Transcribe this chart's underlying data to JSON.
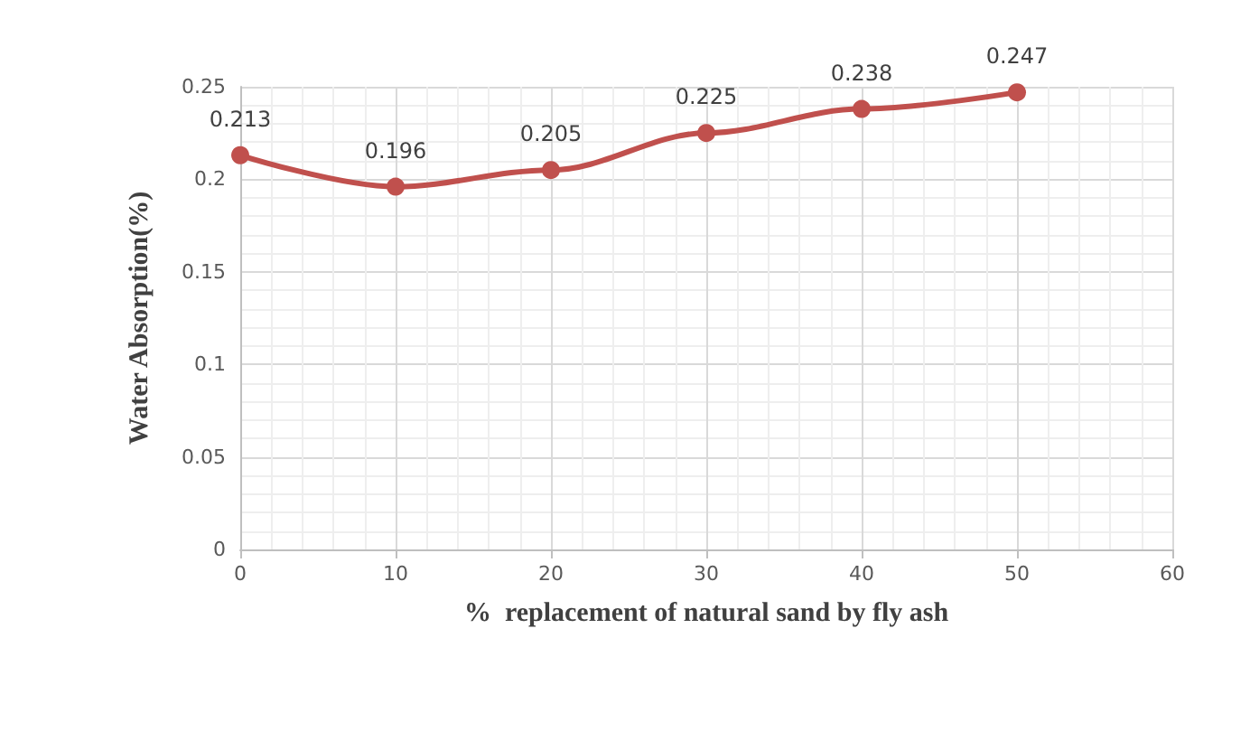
{
  "chart_data": {
    "type": "line",
    "xlabel": "%  replacement of natural sand by fly ash",
    "ylabel": "Water Absorption(%)",
    "x": [
      0,
      10,
      20,
      30,
      40,
      50
    ],
    "series": [
      {
        "color": "#c0504d",
        "values": [
          0.213,
          0.196,
          0.205,
          0.225,
          0.238,
          0.247
        ]
      }
    ],
    "xlim": [
      0,
      60
    ],
    "xticks": [
      0,
      10,
      20,
      30,
      40,
      50,
      60
    ],
    "ylim": [
      0,
      0.25
    ],
    "yticks": [
      0,
      0.05,
      0.1,
      0.15,
      0.2,
      0.25
    ],
    "grid": true,
    "marker": "circle",
    "data_labels": true
  }
}
